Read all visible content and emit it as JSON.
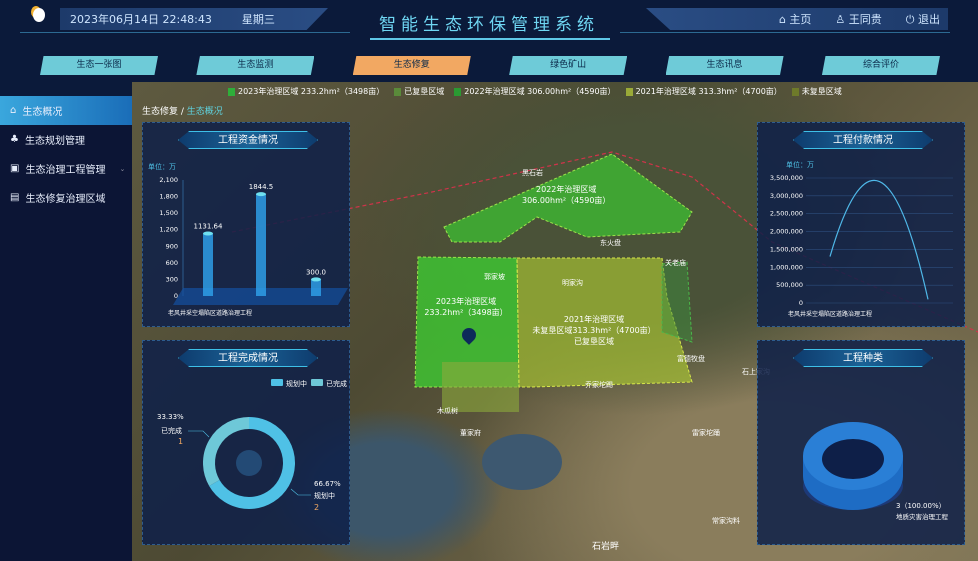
{
  "header": {
    "datetime": "2023年06月14日 22:48:43",
    "weekday": "星期三",
    "title": "智能生态环保管理系统",
    "home": "主页",
    "user": "王同贵",
    "logout": "退出"
  },
  "nav": [
    {
      "label": "生态一张图"
    },
    {
      "label": "生态监测"
    },
    {
      "label": "生态修复",
      "active": true
    },
    {
      "label": "绿色矿山"
    },
    {
      "label": "生态讯息"
    },
    {
      "label": "综合评价"
    }
  ],
  "sidebar": [
    {
      "label": "生态概况",
      "icon": "home-icon",
      "active": true
    },
    {
      "label": "生态规划管理",
      "icon": "sitemap-icon"
    },
    {
      "label": "生态治理工程管理",
      "icon": "chart-doc-icon",
      "expandable": true
    },
    {
      "label": "生态修复治理区域",
      "icon": "document-icon"
    }
  ],
  "breadcrumb": {
    "parent": "生态修复",
    "current": "生态概况"
  },
  "map_legend": [
    {
      "label": "2023年治理区域 233.2hm²（3498亩）",
      "color": "#2fae3a"
    },
    {
      "label": "已复垦区域",
      "color": "#5a8a3a"
    },
    {
      "label": "2022年治理区域 306.00hm²（4590亩）",
      "color": "#2a9a32"
    },
    {
      "label": "2021年治理区域 313.3hm²（4700亩）",
      "color": "#9aaa38"
    },
    {
      "label": "未复垦区域",
      "color": "#6e7a2a"
    }
  ],
  "map_areas": {
    "a2022": [
      "2022年治理区域",
      "306.00hm²（4590亩）"
    ],
    "a2023": [
      "2023年治理区域",
      "233.2hm²（3498亩）"
    ],
    "a2021": [
      "2021年治理区域",
      "未复垦区域313.3hm²（4700亩）",
      "已复垦区域"
    ]
  },
  "places": [
    "黑石岩",
    "东火盘",
    "关老庙",
    "郭家坡",
    "明家沟",
    "富德牧盘",
    "乔家坨踢",
    "木瓜树",
    "董家府",
    "雷家坨踊",
    "常家沟料",
    "石岩畔",
    "石上家沟"
  ],
  "panels": {
    "funds": "工程资金情况",
    "payment": "工程付款情况",
    "completion": "工程完成情况",
    "types": "工程种类"
  },
  "chart_data": [
    {
      "type": "bar",
      "title": "工程资金情况",
      "unit": "单位：万",
      "categories": [
        "老风井采空塌陷区道路治理工程",
        "",
        ""
      ],
      "values": [
        1131.64,
        1844.5,
        300.0
      ],
      "value_labels": [
        "1131.64",
        "1844.5",
        "300.0"
      ],
      "ylim": [
        0,
        2100
      ],
      "yticks": [
        "0",
        "300",
        "600",
        "900",
        "1,200",
        "1,500",
        "1,800",
        "2,100"
      ],
      "color": "#2e9ee6"
    },
    {
      "type": "line",
      "title": "工程付款情况",
      "unit": "单位：万",
      "categories": [
        "老风井采空塌陷区道路治理工程",
        "",
        ""
      ],
      "values": [
        1300000,
        3400000,
        100000
      ],
      "ylim": [
        0,
        3500000
      ],
      "yticks": [
        "0",
        "500,000",
        "1,000,000",
        "1,500,000",
        "2,000,000",
        "2,500,000",
        "3,000,000",
        "3,500,000"
      ],
      "color": "#4fb8e8"
    },
    {
      "type": "pie",
      "title": "工程完成情况",
      "legend": [
        "规划中",
        "已完成"
      ],
      "slices": [
        {
          "name": "规划中",
          "value": 2,
          "percent": "66.67%",
          "color": "#4fc1e6"
        },
        {
          "name": "已完成",
          "value": 1,
          "percent": "33.33%",
          "color": "#6ec8d8"
        }
      ]
    },
    {
      "type": "pie",
      "title": "工程种类",
      "slices": [
        {
          "name": "地质灾害治理工程",
          "value": 3,
          "label": "3（100.00%）",
          "color": "#2a7fd6"
        }
      ]
    }
  ]
}
